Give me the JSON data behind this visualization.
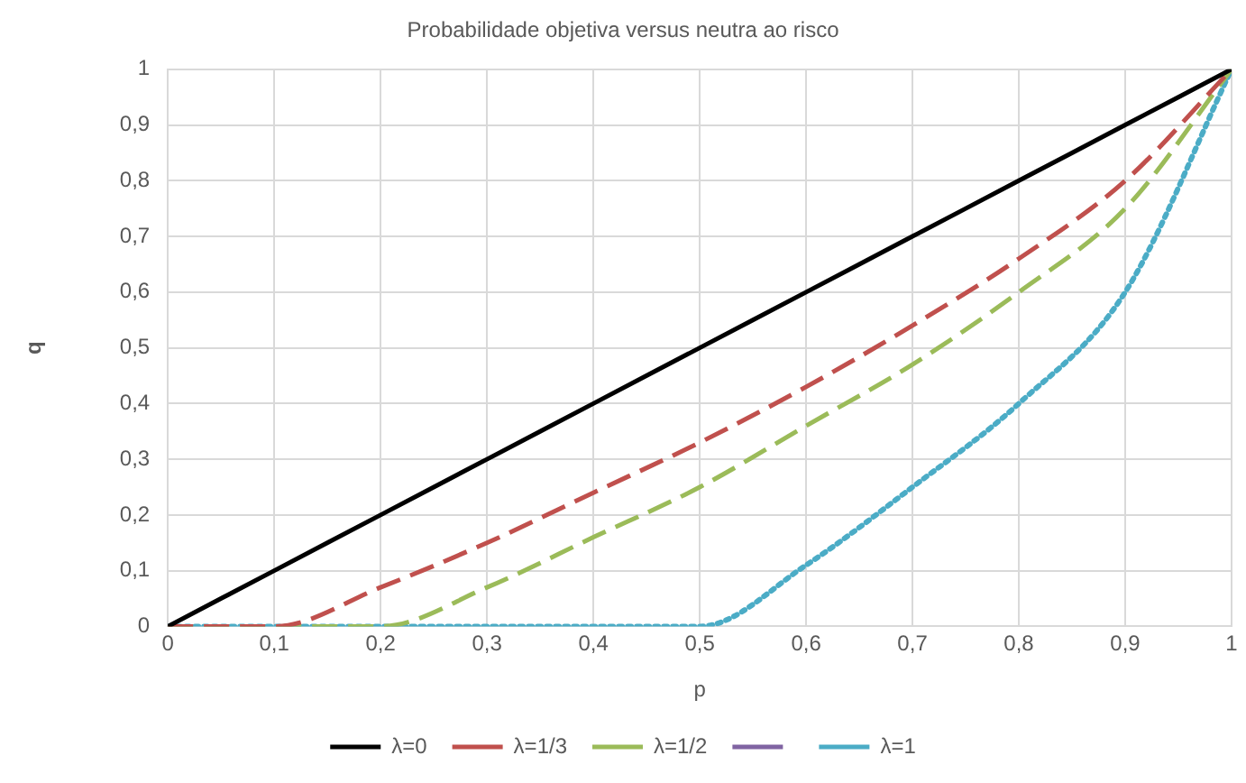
{
  "chart_data": {
    "type": "line",
    "title": "Probabilidade objetiva versus neutra ao risco",
    "xlabel": "p",
    "ylabel": "q",
    "x": [
      0,
      0.1,
      0.2,
      0.3,
      0.4,
      0.5,
      0.6,
      0.7,
      0.8,
      0.9,
      1
    ],
    "series": [
      {
        "name": "λ=0",
        "color": "#000000",
        "line_style": "solid",
        "values": [
          0,
          0.1,
          0.2,
          0.3,
          0.4,
          0.5,
          0.6,
          0.7,
          0.8,
          0.9,
          1
        ]
      },
      {
        "name": "λ=1/3",
        "color": "#c0504d",
        "line_style": "dashed",
        "values": [
          0,
          0,
          0.07,
          0.15,
          0.24,
          0.33,
          0.43,
          0.54,
          0.66,
          0.8,
          1
        ]
      },
      {
        "name": "λ=1/2",
        "color": "#9bbb59",
        "line_style": "dashed",
        "values": [
          0,
          0,
          0,
          0.07,
          0.16,
          0.25,
          0.36,
          0.47,
          0.6,
          0.75,
          1
        ]
      },
      {
        "color": "#8064a2",
        "line_style": "solid",
        "values": [
          null,
          null,
          null,
          null,
          null,
          null,
          null,
          null,
          null,
          null,
          null
        ]
      },
      {
        "name": "λ=1",
        "color": "#4bacc6",
        "line_style": "dotted",
        "values": [
          0,
          0,
          0,
          0,
          0,
          0,
          0.11,
          0.25,
          0.4,
          0.6,
          1
        ]
      }
    ],
    "xlim": [
      0,
      1
    ],
    "xticks": [
      0,
      {
        "value": 0.1,
        "label": "0,1"
      },
      {
        "value": 0.2,
        "label": "0,2"
      },
      {
        "value": 0.3,
        "label": "0,3"
      },
      {
        "value": 0.4,
        "label": "0,4"
      },
      {
        "value": 0.5,
        "label": "0,5"
      },
      {
        "value": 0.6,
        "label": "0,6"
      },
      {
        "value": 0.7,
        "label": "0,7"
      },
      {
        "value": 0.8,
        "label": "0,8"
      },
      {
        "value": 0.9,
        "label": "0,9"
      },
      1
    ],
    "ylim": [
      0,
      1
    ],
    "yticks": [
      0,
      {
        "value": 0.1,
        "label": "0,1"
      },
      {
        "value": 0.2,
        "label": "0,2"
      },
      {
        "value": 0.3,
        "label": "0,3"
      },
      {
        "value": 0.4,
        "label": "0,4"
      },
      {
        "value": 0.5,
        "label": "0,5"
      },
      {
        "value": 0.6,
        "label": "0,6"
      },
      {
        "value": 0.7,
        "label": "0,7"
      },
      {
        "value": 0.8,
        "label": "0,8"
      },
      {
        "value": 0.9,
        "label": "0,9"
      },
      1
    ],
    "grid": true,
    "legend": "bottom",
    "marker": "none"
  }
}
